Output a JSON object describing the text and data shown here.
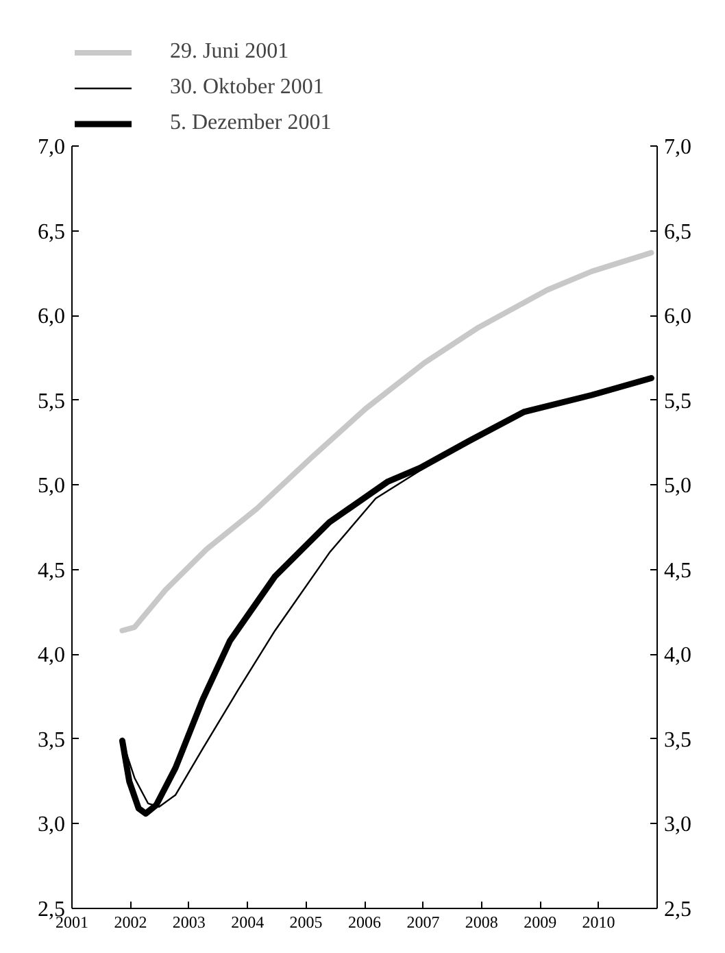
{
  "chart_data": {
    "type": "line",
    "xlim": [
      2001,
      2011
    ],
    "xticks": [
      2001,
      2002,
      2003,
      2004,
      2005,
      2006,
      2007,
      2008,
      2009,
      2010
    ],
    "ylim": [
      2.5,
      7.0
    ],
    "yticks": [
      {
        "value": 2.5,
        "label": "2,5"
      },
      {
        "value": 3.0,
        "label": "3,0"
      },
      {
        "value": 3.5,
        "label": "3,5"
      },
      {
        "value": 4.0,
        "label": "4,0"
      },
      {
        "value": 4.5,
        "label": "4,5"
      },
      {
        "value": 5.0,
        "label": "5,0"
      },
      {
        "value": 5.5,
        "label": "5,5"
      },
      {
        "value": 6.0,
        "label": "6,0"
      },
      {
        "value": 6.5,
        "label": "6,5"
      },
      {
        "value": 7.0,
        "label": "7,0"
      }
    ],
    "y2lim": [
      2.5,
      7.0
    ],
    "y2ticks": [
      {
        "value": 2.5,
        "label": "2,5"
      },
      {
        "value": 3.0,
        "label": "3,0"
      },
      {
        "value": 3.5,
        "label": "3,5"
      },
      {
        "value": 4.0,
        "label": "4,0"
      },
      {
        "value": 4.5,
        "label": "4,5"
      },
      {
        "value": 5.0,
        "label": "5,0"
      },
      {
        "value": 5.5,
        "label": "5,5"
      },
      {
        "value": 6.0,
        "label": "6,0"
      },
      {
        "value": 6.5,
        "label": "6,5"
      },
      {
        "value": 7.0,
        "label": "7,0"
      }
    ],
    "grid": false,
    "legend": "top left",
    "line_style": "solid",
    "series": [
      {
        "name": "29. Juni 2001",
        "color": "#c8c8c8",
        "x": [
          2001.86,
          2002.07,
          2002.6,
          2003.3,
          2004.16,
          2005.09,
          2006.02,
          2007.02,
          2007.95,
          2009.12,
          2009.88,
          2010.9
        ],
        "values": [
          4.14,
          4.16,
          4.38,
          4.62,
          4.86,
          5.16,
          5.45,
          5.72,
          5.93,
          6.15,
          6.26,
          6.37
        ]
      },
      {
        "name": "30. Oktober 2001",
        "color": "#000000",
        "x": [
          2001.86,
          2002.07,
          2002.3,
          2002.49,
          2002.77,
          2003.23,
          2003.84,
          2004.47,
          2005.4,
          2006.19,
          2007.02,
          2007.79,
          2008.72,
          2009.88,
          2010.9
        ],
        "values": [
          3.49,
          3.27,
          3.12,
          3.1,
          3.17,
          3.44,
          3.79,
          4.14,
          4.6,
          4.92,
          5.1,
          5.27,
          5.44,
          5.54,
          5.63
        ]
      },
      {
        "name": "5. Dezember 2001",
        "color": "#000000",
        "x": [
          2001.86,
          2001.98,
          2002.14,
          2002.26,
          2002.44,
          2002.77,
          2003.23,
          2003.7,
          2004.47,
          2005.4,
          2006.4,
          2006.95,
          2007.79,
          2008.72,
          2009.88,
          2010.9
        ],
        "values": [
          3.49,
          3.25,
          3.09,
          3.06,
          3.11,
          3.33,
          3.73,
          4.08,
          4.46,
          4.78,
          5.02,
          5.1,
          5.26,
          5.43,
          5.53,
          5.63
        ]
      }
    ]
  }
}
